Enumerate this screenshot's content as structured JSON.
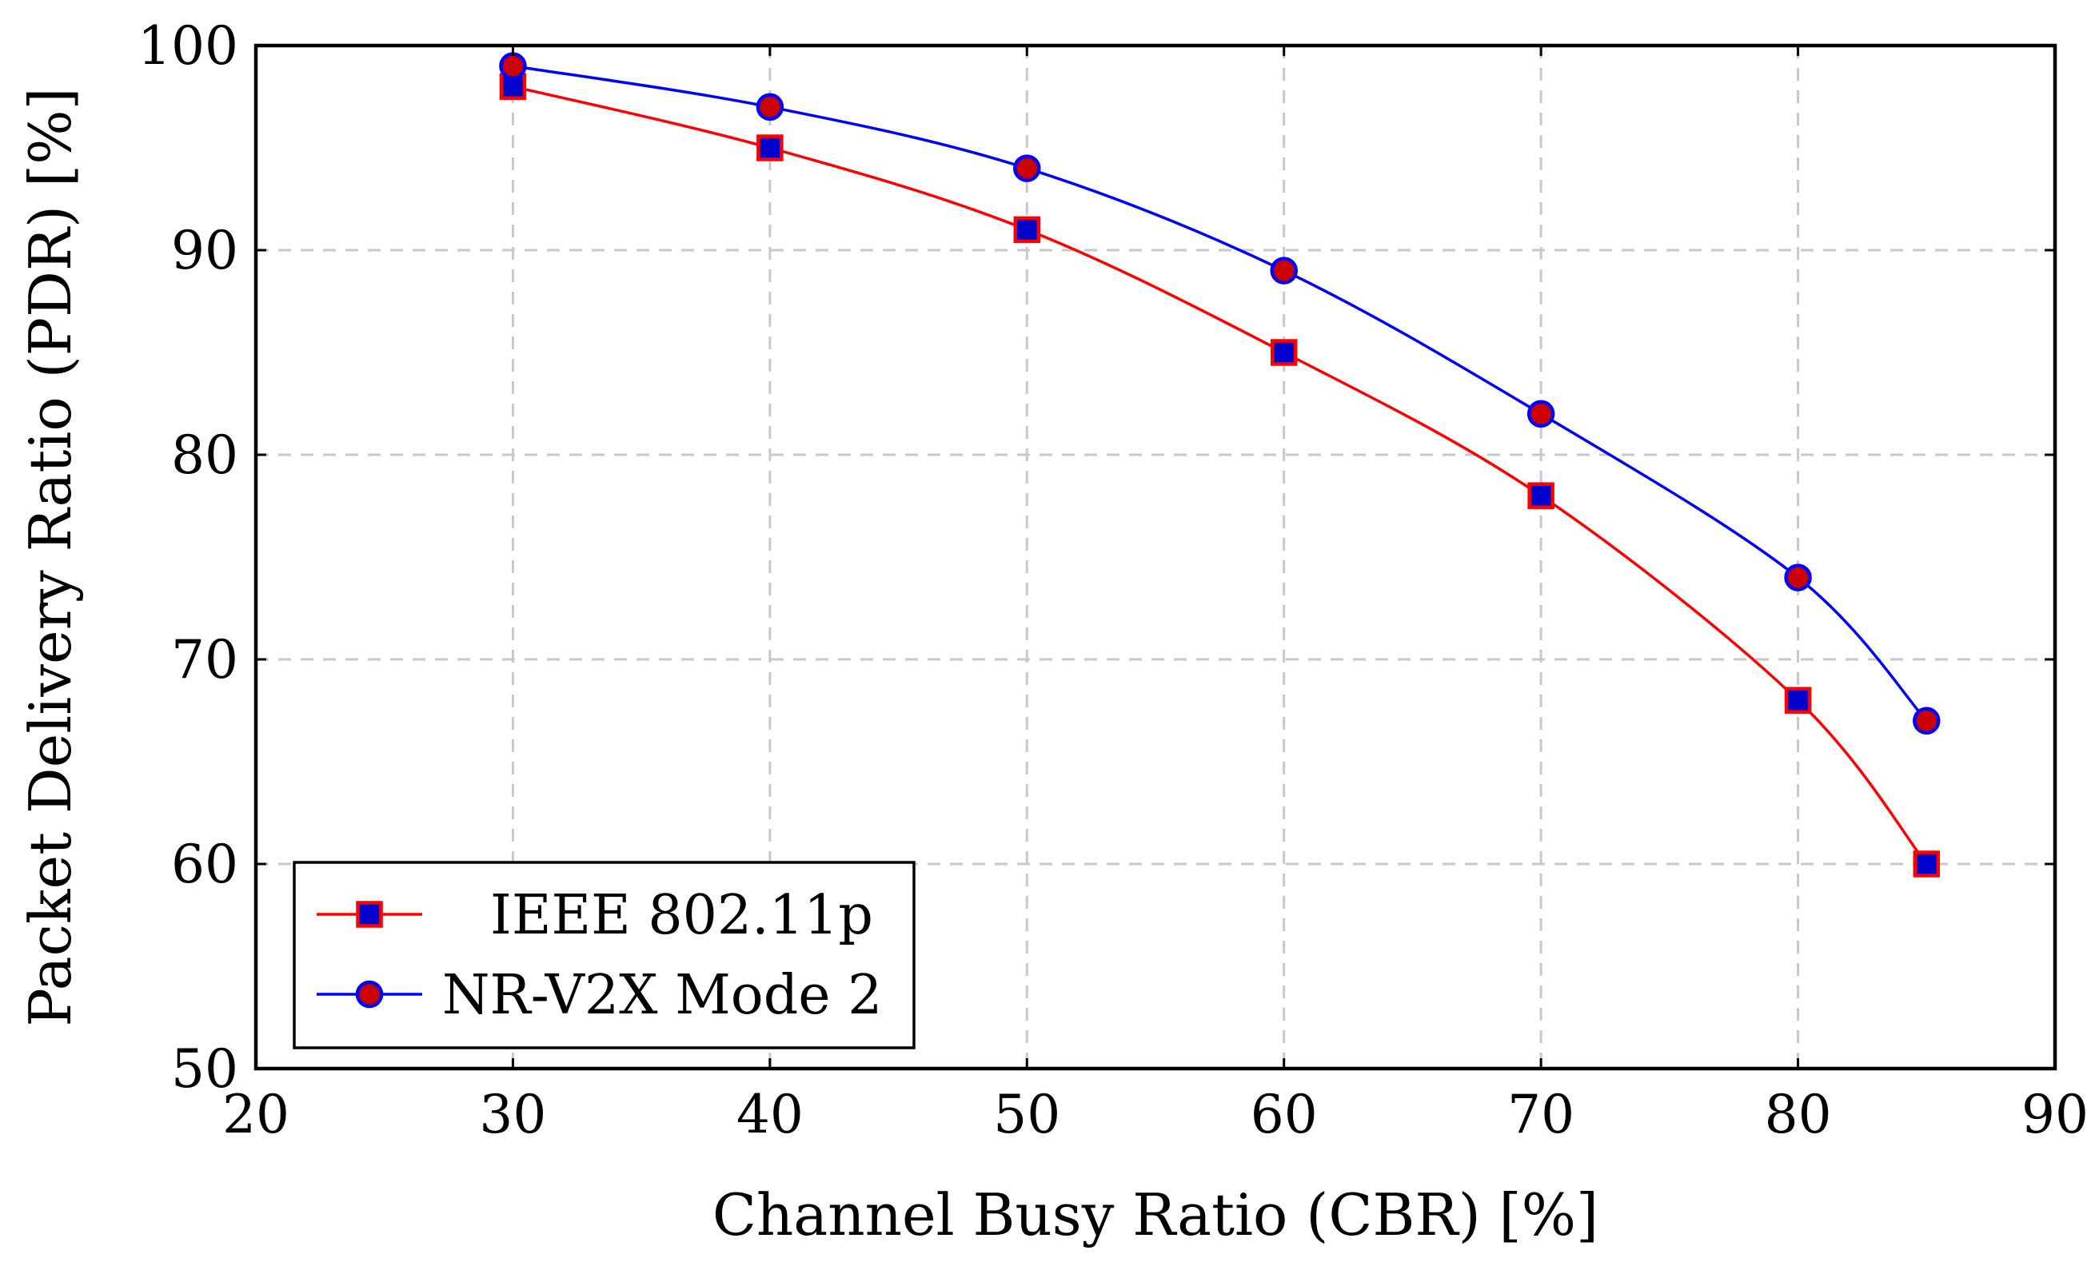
{
  "chart_data": {
    "type": "line",
    "title": "",
    "xlabel": "Channel Busy Ratio (CBR) [%]",
    "ylabel": "Packet Delivery Ratio (PDR) [%]",
    "xlim": [
      20,
      90
    ],
    "ylim": [
      50,
      100
    ],
    "xticks": [
      20,
      30,
      40,
      50,
      60,
      70,
      80,
      90
    ],
    "yticks": [
      50,
      60,
      70,
      80,
      90,
      100
    ],
    "grid": true,
    "legend_position": "bottom-left",
    "series": [
      {
        "name": "IEEE 802.11p",
        "x": [
          30,
          40,
          50,
          60,
          70,
          80,
          85
        ],
        "values": [
          98,
          95,
          91,
          85,
          78,
          68,
          60
        ],
        "line_color": "#ff0000",
        "marker": "square",
        "marker_fill": "#0000cc",
        "marker_stroke": "#ff0000"
      },
      {
        "name": "NR-V2X Mode 2",
        "x": [
          30,
          40,
          50,
          60,
          70,
          80,
          85
        ],
        "values": [
          99,
          97,
          94,
          89,
          82,
          74,
          67
        ],
        "line_color": "#0000ff",
        "marker": "circle",
        "marker_fill": "#cc0000",
        "marker_stroke": "#0000ff"
      }
    ]
  }
}
